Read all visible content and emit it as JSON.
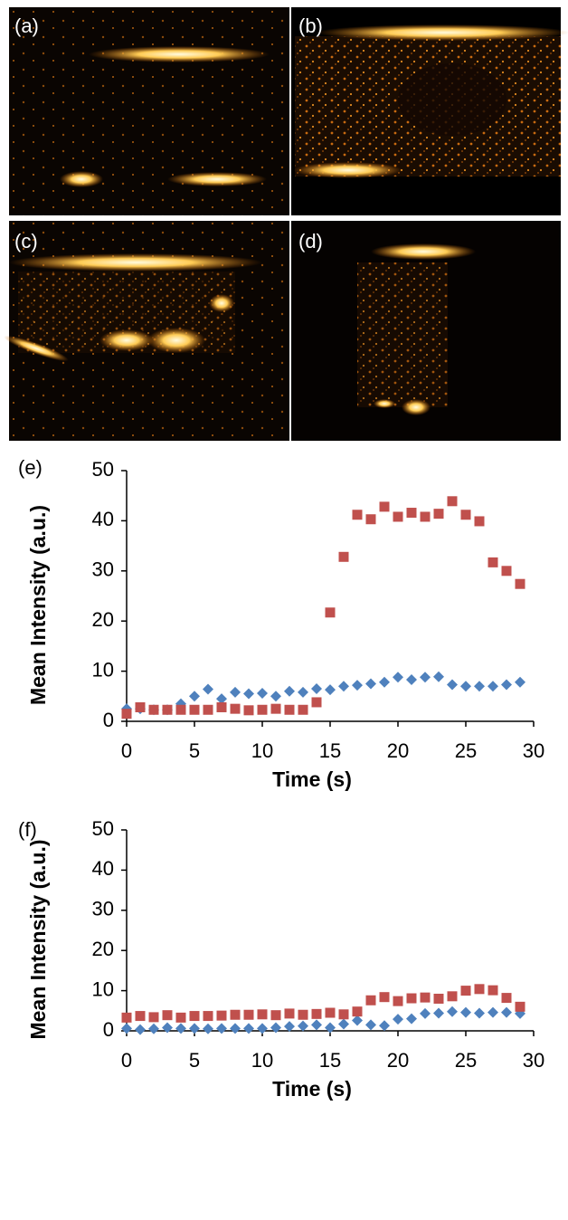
{
  "images": [
    {
      "label": "(a)"
    },
    {
      "label": "(b)"
    },
    {
      "label": "(c)"
    },
    {
      "label": "(d)"
    }
  ],
  "chart_data": [
    {
      "type": "scatter",
      "title": "(e)",
      "x_label": "Time (s)",
      "y_label": "Mean Intensity (a.u.)",
      "x": [
        0,
        1,
        2,
        3,
        4,
        5,
        6,
        7,
        8,
        9,
        10,
        11,
        12,
        13,
        14,
        15,
        16,
        17,
        18,
        19,
        20,
        21,
        22,
        23,
        24,
        25,
        26,
        27,
        28,
        29
      ],
      "series": [
        {
          "color": "#4f81bd",
          "marker": "diamond",
          "values": [
            2.5,
            2.5,
            2.3,
            2.3,
            3.5,
            5.0,
            6.4,
            4.5,
            5.8,
            5.5,
            5.6,
            5.0,
            6.0,
            5.8,
            6.5,
            6.3,
            7.0,
            7.2,
            7.5,
            7.8,
            8.8,
            8.3,
            8.8,
            8.9,
            7.3,
            7.0,
            7.0,
            7.0,
            7.3,
            7.8
          ]
        },
        {
          "color": "#c0504d",
          "marker": "square",
          "values": [
            1.5,
            2.8,
            2.3,
            2.3,
            2.3,
            2.3,
            2.3,
            2.8,
            2.5,
            2.2,
            2.3,
            2.5,
            2.3,
            2.3,
            3.8,
            21.7,
            32.8,
            41.2,
            40.3,
            42.8,
            40.8,
            41.6,
            40.8,
            41.4,
            43.9,
            41.2,
            39.9,
            31.7,
            30.0,
            27.4
          ]
        }
      ],
      "xlim": [
        0,
        30
      ],
      "xticks": [
        0,
        5,
        10,
        15,
        20,
        25,
        30
      ],
      "ylim": [
        0,
        50
      ],
      "yticks": [
        0,
        10,
        20,
        30,
        40,
        50
      ],
      "grid": false
    },
    {
      "type": "scatter",
      "title": "(f)",
      "x_label": "Time (s)",
      "y_label": "Mean Intensity (a.u.)",
      "x": [
        0,
        1,
        2,
        3,
        4,
        5,
        6,
        7,
        8,
        9,
        10,
        11,
        12,
        13,
        14,
        15,
        16,
        17,
        18,
        19,
        20,
        21,
        22,
        23,
        24,
        25,
        26,
        27,
        28,
        29
      ],
      "series": [
        {
          "color": "#4f81bd",
          "marker": "diamond",
          "values": [
            0.6,
            0.3,
            0.5,
            0.8,
            0.6,
            0.6,
            0.5,
            0.6,
            0.6,
            0.6,
            0.6,
            0.8,
            1.1,
            1.2,
            1.5,
            0.8,
            1.7,
            2.6,
            1.5,
            1.3,
            2.9,
            3.0,
            4.3,
            4.4,
            4.8,
            4.6,
            4.4,
            4.6,
            4.6,
            4.3
          ]
        },
        {
          "color": "#c0504d",
          "marker": "square",
          "values": [
            3.3,
            3.7,
            3.4,
            3.9,
            3.3,
            3.7,
            3.7,
            3.8,
            4.0,
            4.0,
            4.1,
            3.9,
            4.3,
            4.0,
            4.2,
            4.5,
            4.1,
            4.8,
            7.6,
            8.4,
            7.4,
            8.1,
            8.3,
            8.0,
            8.6,
            10.0,
            10.4,
            10.1,
            8.2,
            6.0
          ]
        }
      ],
      "xlim": [
        0,
        30
      ],
      "xticks": [
        0,
        5,
        10,
        15,
        20,
        25,
        30
      ],
      "ylim": [
        0,
        50
      ],
      "yticks": [
        0,
        10,
        20,
        30,
        40,
        50
      ],
      "grid": false
    }
  ]
}
